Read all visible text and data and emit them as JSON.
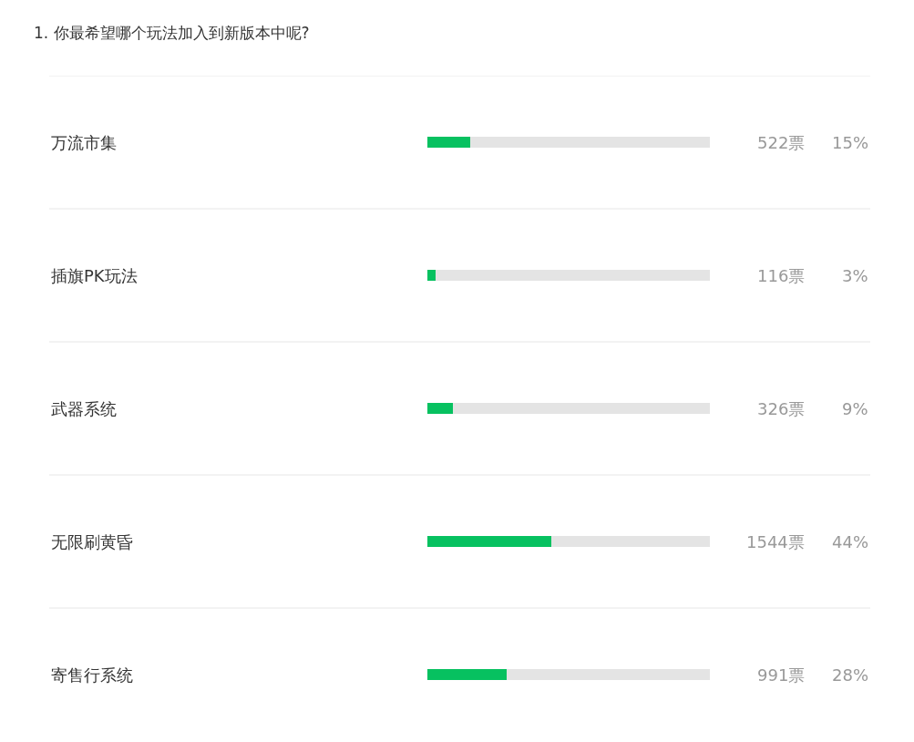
{
  "chart_data": {
    "type": "bar",
    "orientation": "horizontal",
    "stacked": true,
    "title": "1. 你最希望哪个玩法加入到新版本中呢?",
    "categories": [
      "万流市集",
      "插旗PK玩法",
      "武器系统",
      "无限刷黄昏",
      "寄售行系统"
    ],
    "series": [
      {
        "color": "#07c160",
        "values": [
          15,
          3,
          9,
          44,
          28
        ],
        "value_labels": [
          "15%",
          "3%",
          "9%",
          "44%",
          "28%"
        ]
      },
      {
        "color": "#e4e4e4",
        "values": [
          85,
          97,
          91,
          56,
          72
        ]
      }
    ],
    "xlim": [
      0,
      100
    ],
    "tick_labels": "y",
    "grid": "y",
    "annotations": [
      "522票",
      "116票",
      "326票",
      "1544票",
      "991票"
    ]
  }
}
